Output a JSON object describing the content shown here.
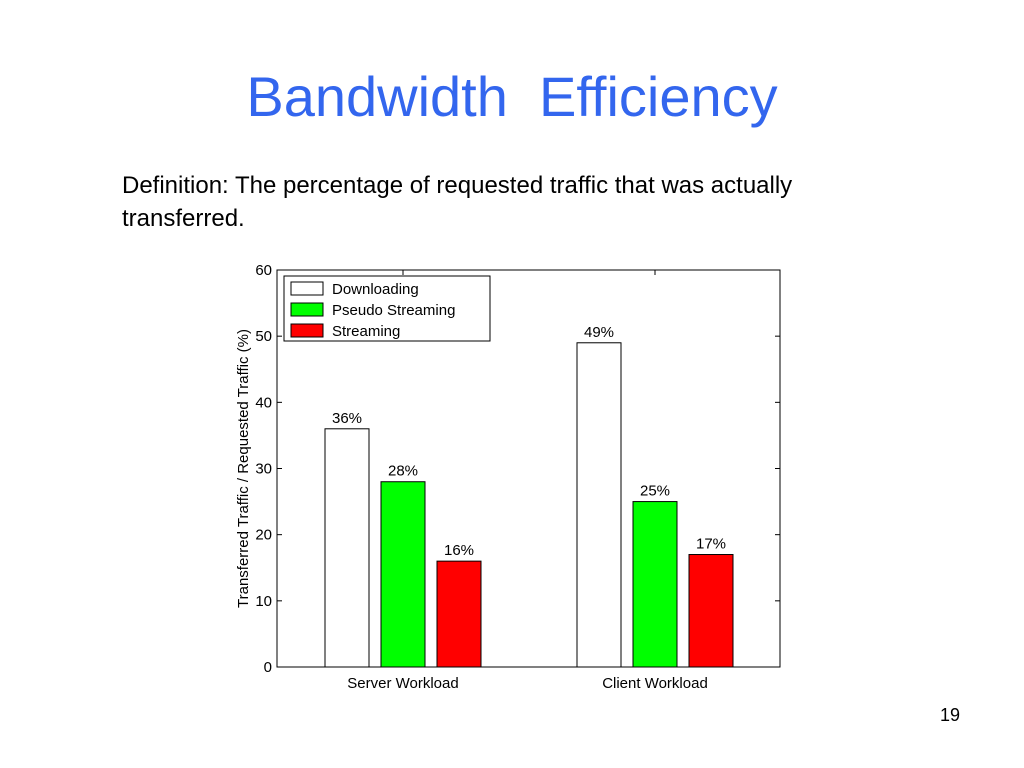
{
  "slide": {
    "title": "Bandwidth  Efficiency",
    "definition_line1": "Definition: The percentage of requested traffic that was actually",
    "definition_line2": "transferred.",
    "page_number": "19"
  },
  "chart_data": {
    "type": "bar",
    "categories": [
      "Server Workload",
      "Client Workload"
    ],
    "series": [
      {
        "name": "Downloading",
        "values": [
          36,
          49
        ],
        "labels": [
          "36%",
          "49%"
        ],
        "color": "#ffffff"
      },
      {
        "name": "Pseudo Streaming",
        "values": [
          28,
          25
        ],
        "labels": [
          "28%",
          "25%"
        ],
        "color": "#00ff00"
      },
      {
        "name": "Streaming",
        "values": [
          16,
          17
        ],
        "labels": [
          "16%",
          "17%"
        ],
        "color": "#ff0000"
      }
    ],
    "title": "",
    "xlabel": "",
    "ylabel": "Transferred Traffic / Requested Traffic (%)",
    "ylim": [
      0,
      60
    ],
    "yticks": [
      0,
      10,
      20,
      30,
      40,
      50,
      60
    ],
    "grid": false,
    "legend_position": "top-left"
  },
  "colors": {
    "title": "#3366ee"
  }
}
